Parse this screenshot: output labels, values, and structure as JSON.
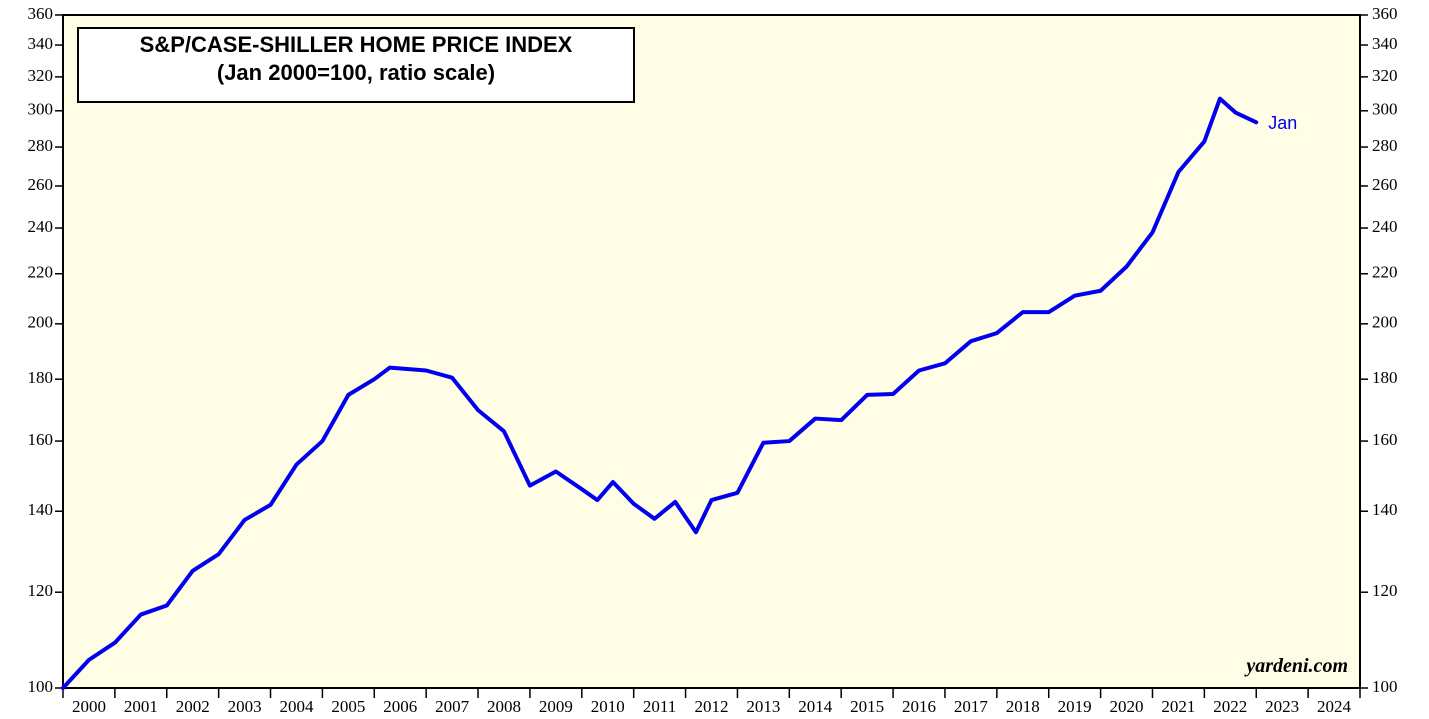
{
  "chart_data": {
    "type": "line",
    "title": "S&P/CASE-SHILLER HOME PRICE INDEX",
    "subtitle": "(Jan 2000=100, ratio scale)",
    "annotation": "Jan",
    "source": "yardeni.com",
    "log_scale": true,
    "categories": [
      "2000",
      "2001",
      "2002",
      "2003",
      "2004",
      "2005",
      "2006",
      "2007",
      "2008",
      "2009",
      "2010",
      "2011",
      "2012",
      "2013",
      "2014",
      "2015",
      "2016",
      "2017",
      "2018",
      "2019",
      "2020",
      "2021",
      "2022",
      "2023",
      "2024"
    ],
    "xlim": [
      2000,
      2025
    ],
    "xticks": [
      2000,
      2001,
      2002,
      2003,
      2004,
      2005,
      2006,
      2007,
      2008,
      2009,
      2010,
      2011,
      2012,
      2013,
      2014,
      2015,
      2016,
      2017,
      2018,
      2019,
      2020,
      2021,
      2022,
      2023,
      2024,
      2025
    ],
    "ylim": [
      100,
      360
    ],
    "yticks": [
      100,
      120,
      140,
      160,
      180,
      200,
      220,
      240,
      260,
      280,
      300,
      320,
      340,
      360
    ],
    "series": [
      {
        "name": "S&P/Case-Shiller Home Price Index",
        "color": "#0000ee",
        "x": [
          2000.0,
          2000.5,
          2001.0,
          2001.5,
          2002.0,
          2002.5,
          2003.0,
          2003.5,
          2004.0,
          2004.5,
          2005.0,
          2005.5,
          2006.0,
          2006.3,
          2007.0,
          2007.5,
          2008.0,
          2008.5,
          2009.0,
          2009.5,
          2010.0,
          2010.3,
          2010.6,
          2011.0,
          2011.4,
          2011.8,
          2012.2,
          2012.5,
          2013.0,
          2013.5,
          2014.0,
          2014.5,
          2015.0,
          2015.5,
          2016.0,
          2016.5,
          2017.0,
          2017.5,
          2018.0,
          2018.5,
          2019.0,
          2019.5,
          2020.0,
          2020.5,
          2021.0,
          2021.5,
          2022.0,
          2022.3,
          2022.6,
          2023.0
        ],
        "values": [
          100,
          105.5,
          109,
          115,
          117,
          125,
          129,
          137.7,
          141.7,
          153,
          160,
          174.7,
          180,
          184,
          183,
          180.5,
          169.7,
          163,
          147,
          151,
          146,
          143,
          148,
          142,
          138,
          142.5,
          134.5,
          143,
          145,
          159.5,
          160,
          167,
          166.5,
          174.7,
          175,
          183,
          185.5,
          193.5,
          196.5,
          204.5,
          204.5,
          211,
          213,
          223,
          238,
          267,
          283,
          307,
          299,
          293.5
        ]
      }
    ]
  }
}
